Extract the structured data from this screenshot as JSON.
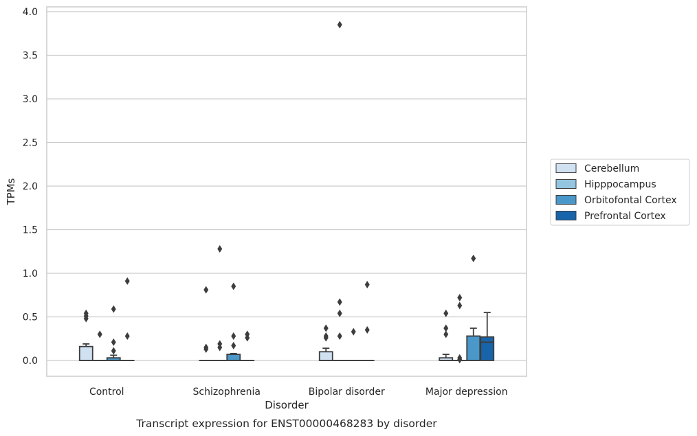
{
  "chart_data": {
    "type": "box",
    "categories": [
      "Control",
      "Schizophrenia",
      "Bipolar disorder",
      "Major depression"
    ],
    "xlabel": "Disorder",
    "ylabel": "TPMs",
    "ylim": [
      -0.18,
      4.05
    ],
    "yticks": [
      0.0,
      0.5,
      1.0,
      1.5,
      2.0,
      2.5,
      3.0,
      3.5,
      4.0
    ],
    "ytick_labels": [
      "0.0",
      "0.5",
      "1.0",
      "1.5",
      "2.0",
      "2.5",
      "3.0",
      "3.5",
      "4.0"
    ],
    "grid": "horizontal",
    "legend_position": "right",
    "caption": "Transcript expression for ENST00000468283 by disorder",
    "series": [
      {
        "name": "Cerebellum",
        "color": "#d0e1f2",
        "boxes": [
          {
            "q1": 0.0,
            "median": 0.0,
            "q3": 0.16,
            "whisker_low": 0.0,
            "whisker_high": 0.19,
            "outliers": [
              0.54,
              0.51,
              0.48
            ]
          },
          {
            "q1": 0.0,
            "median": 0.0,
            "q3": 0.0,
            "whisker_low": 0.0,
            "whisker_high": 0.0,
            "outliers": [
              0.81,
              0.15,
              0.13
            ]
          },
          {
            "q1": 0.0,
            "median": 0.0,
            "q3": 0.1,
            "whisker_low": 0.0,
            "whisker_high": 0.14,
            "outliers": [
              0.37,
              0.28,
              0.26
            ]
          },
          {
            "q1": 0.0,
            "median": 0.0,
            "q3": 0.03,
            "whisker_low": 0.0,
            "whisker_high": 0.07,
            "outliers": [
              0.54,
              0.37,
              0.3
            ]
          }
        ]
      },
      {
        "name": "Hipppocampus",
        "color": "#94c4df",
        "boxes": [
          {
            "q1": 0.0,
            "median": 0.0,
            "q3": 0.0,
            "whisker_low": 0.0,
            "whisker_high": 0.0,
            "outliers": [
              0.3
            ]
          },
          {
            "q1": 0.0,
            "median": 0.0,
            "q3": 0.0,
            "whisker_low": 0.0,
            "whisker_high": 0.0,
            "outliers": [
              1.28,
              0.19,
              0.15
            ]
          },
          {
            "q1": 0.0,
            "median": 0.0,
            "q3": 0.0,
            "whisker_low": 0.0,
            "whisker_high": 0.0,
            "outliers": [
              3.85,
              0.67,
              0.54,
              0.28
            ]
          },
          {
            "q1": 0.0,
            "median": 0.0,
            "q3": 0.0,
            "whisker_low": 0.0,
            "whisker_high": 0.0,
            "outliers": [
              0.72,
              0.63,
              0.03,
              0.01
            ]
          }
        ]
      },
      {
        "name": "Orbitofontal Cortex",
        "color": "#4a98c9",
        "boxes": [
          {
            "q1": 0.0,
            "median": 0.0,
            "q3": 0.03,
            "whisker_low": 0.0,
            "whisker_high": 0.06,
            "outliers": [
              0.59,
              0.21,
              0.11
            ]
          },
          {
            "q1": 0.0,
            "median": 0.0,
            "q3": 0.07,
            "whisker_low": 0.0,
            "whisker_high": 0.08,
            "outliers": [
              0.85,
              0.28,
              0.17
            ]
          },
          {
            "q1": 0.0,
            "median": 0.0,
            "q3": 0.0,
            "whisker_low": 0.0,
            "whisker_high": 0.0,
            "outliers": [
              0.33
            ]
          },
          {
            "q1": 0.0,
            "median": 0.0,
            "q3": 0.28,
            "whisker_low": 0.0,
            "whisker_high": 0.37,
            "outliers": [
              1.17
            ]
          }
        ]
      },
      {
        "name": "Prefrontal Cortex",
        "color": "#1764ab",
        "boxes": [
          {
            "q1": 0.0,
            "median": 0.0,
            "q3": 0.0,
            "whisker_low": 0.0,
            "whisker_high": 0.0,
            "outliers": [
              0.91,
              0.28
            ]
          },
          {
            "q1": 0.0,
            "median": 0.0,
            "q3": 0.0,
            "whisker_low": 0.0,
            "whisker_high": 0.0,
            "outliers": [
              0.3,
              0.26
            ]
          },
          {
            "q1": 0.0,
            "median": 0.0,
            "q3": 0.0,
            "whisker_low": 0.0,
            "whisker_high": 0.0,
            "outliers": [
              0.87,
              0.35
            ]
          },
          {
            "q1": 0.0,
            "median": 0.21,
            "q3": 0.27,
            "whisker_low": 0.0,
            "whisker_high": 0.55,
            "outliers": []
          }
        ]
      }
    ]
  }
}
